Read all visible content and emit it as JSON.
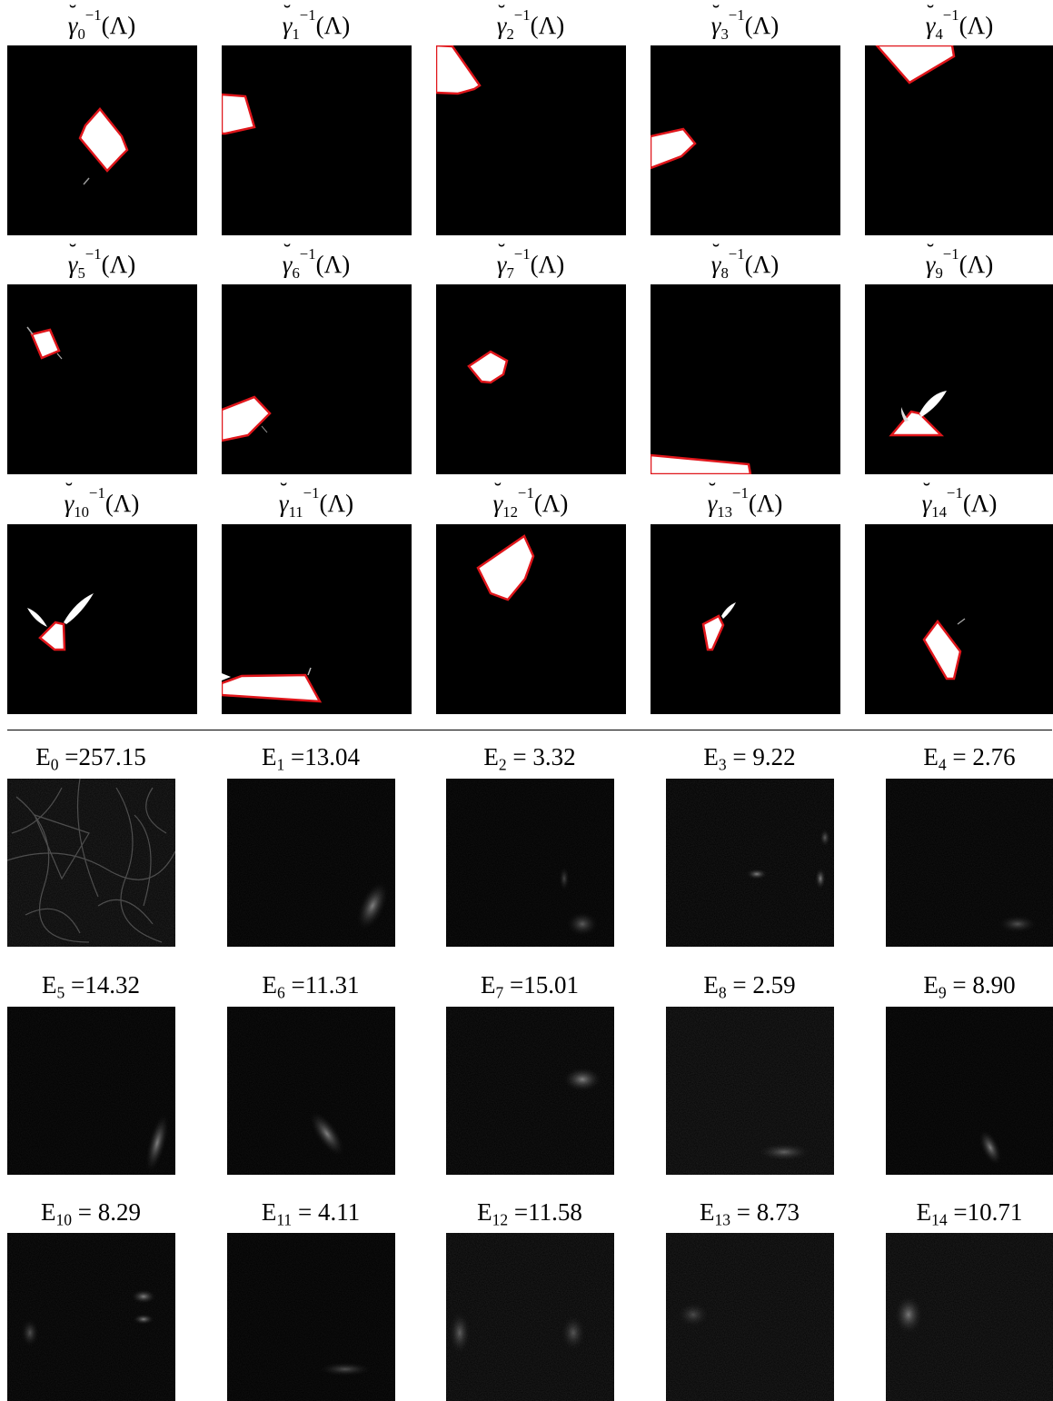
{
  "masks": [
    {
      "label": "γ̆0−1(Λ)",
      "idx": "0"
    },
    {
      "label": "γ̆1−1(Λ)",
      "idx": "1"
    },
    {
      "label": "γ̆2−1(Λ)",
      "idx": "2"
    },
    {
      "label": "γ̆3−1(Λ)",
      "idx": "3"
    },
    {
      "label": "γ̆4−1(Λ)",
      "idx": "4"
    },
    {
      "label": "γ̆5−1(Λ)",
      "idx": "5"
    },
    {
      "label": "γ̆6−1(Λ)",
      "idx": "6"
    },
    {
      "label": "γ̆7−1(Λ)",
      "idx": "7"
    },
    {
      "label": "γ̆8−1(Λ)",
      "idx": "8"
    },
    {
      "label": "γ̆9−1(Λ)",
      "idx": "9"
    },
    {
      "label": "γ̆10−1(Λ)",
      "idx": "10"
    },
    {
      "label": "γ̆11−1(Λ)",
      "idx": "11"
    },
    {
      "label": "γ̆12−1(Λ)",
      "idx": "12"
    },
    {
      "label": "γ̆13−1(Λ)",
      "idx": "13"
    },
    {
      "label": "γ̆14−1(Λ)",
      "idx": "14"
    }
  ],
  "errors": [
    {
      "sub": "0",
      "value": "257.15",
      "sep": "="
    },
    {
      "sub": "1",
      "value": "13.04",
      "sep": "="
    },
    {
      "sub": "2",
      "value": "3.32",
      "sep": "= "
    },
    {
      "sub": "3",
      "value": "9.22",
      "sep": "= "
    },
    {
      "sub": "4",
      "value": "2.76",
      "sep": "= "
    },
    {
      "sub": "5",
      "value": "14.32",
      "sep": "="
    },
    {
      "sub": "6",
      "value": "11.31",
      "sep": "="
    },
    {
      "sub": "7",
      "value": "15.01",
      "sep": "="
    },
    {
      "sub": "8",
      "value": "2.59",
      "sep": "= "
    },
    {
      "sub": "9",
      "value": "8.90",
      "sep": "= "
    },
    {
      "sub": "10",
      "value": "8.29",
      "sep": "= "
    },
    {
      "sub": "11",
      "value": "4.11",
      "sep": "= "
    },
    {
      "sub": "12",
      "value": "11.58",
      "sep": "="
    },
    {
      "sub": "13",
      "value": "8.73",
      "sep": "= "
    },
    {
      "sub": "14",
      "value": "10.71",
      "sep": "="
    }
  ],
  "symbols": {
    "gamma": "γ",
    "sup": "−1",
    "arg": "(Λ)",
    "energy": "E"
  },
  "colors": {
    "outline": "#e0161b",
    "fill": "#ffffff",
    "background": "#000000"
  }
}
